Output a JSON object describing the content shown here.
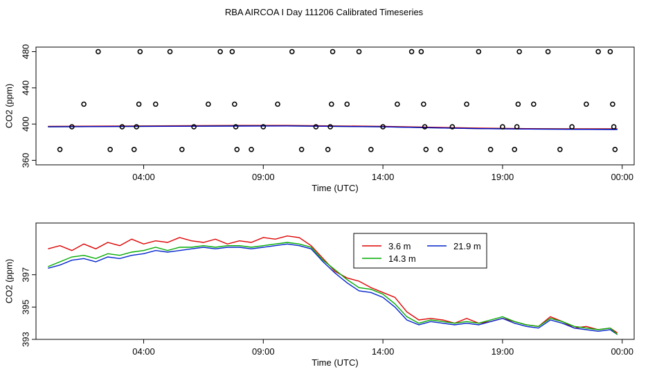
{
  "title": "RBA AIRCOA I  Day 111206  Calibrated Timeseries",
  "chart_data": [
    {
      "type": "scatter",
      "xlabel": "Time (UTC)",
      "ylabel": "CO2 (ppm)",
      "xlim": [
        -0.5,
        24.5
      ],
      "ylim": [
        355,
        485
      ],
      "x_ticks": [
        4,
        9,
        14,
        19,
        24
      ],
      "x_tick_labels": [
        "04:00",
        "09:00",
        "14:00",
        "19:00",
        "00:00"
      ],
      "y_ticks": [
        360,
        400,
        440,
        480
      ],
      "y_tick_labels": [
        "360",
        "400",
        "440",
        "480"
      ],
      "grid": false,
      "points": [
        {
          "x": 0.5,
          "y": 372
        },
        {
          "x": 1.0,
          "y": 397
        },
        {
          "x": 1.5,
          "y": 422
        },
        {
          "x": 2.1,
          "y": 480
        },
        {
          "x": 2.6,
          "y": 372
        },
        {
          "x": 3.1,
          "y": 397
        },
        {
          "x": 3.6,
          "y": 372
        },
        {
          "x": 3.7,
          "y": 397
        },
        {
          "x": 3.8,
          "y": 422
        },
        {
          "x": 3.85,
          "y": 480
        },
        {
          "x": 4.5,
          "y": 422
        },
        {
          "x": 5.1,
          "y": 480
        },
        {
          "x": 5.6,
          "y": 372
        },
        {
          "x": 6.1,
          "y": 397
        },
        {
          "x": 6.7,
          "y": 422
        },
        {
          "x": 7.2,
          "y": 480
        },
        {
          "x": 7.7,
          "y": 480
        },
        {
          "x": 7.8,
          "y": 422
        },
        {
          "x": 7.85,
          "y": 397
        },
        {
          "x": 7.9,
          "y": 372
        },
        {
          "x": 8.5,
          "y": 372
        },
        {
          "x": 9.0,
          "y": 397
        },
        {
          "x": 9.6,
          "y": 422
        },
        {
          "x": 10.2,
          "y": 480
        },
        {
          "x": 10.6,
          "y": 372
        },
        {
          "x": 11.2,
          "y": 397
        },
        {
          "x": 11.7,
          "y": 372
        },
        {
          "x": 11.8,
          "y": 397
        },
        {
          "x": 11.85,
          "y": 422
        },
        {
          "x": 11.9,
          "y": 480
        },
        {
          "x": 12.5,
          "y": 422
        },
        {
          "x": 13.0,
          "y": 480
        },
        {
          "x": 13.5,
          "y": 372
        },
        {
          "x": 14.0,
          "y": 397
        },
        {
          "x": 14.6,
          "y": 422
        },
        {
          "x": 15.2,
          "y": 480
        },
        {
          "x": 15.6,
          "y": 480
        },
        {
          "x": 15.7,
          "y": 422
        },
        {
          "x": 15.75,
          "y": 397
        },
        {
          "x": 15.8,
          "y": 372
        },
        {
          "x": 16.4,
          "y": 372
        },
        {
          "x": 16.9,
          "y": 397
        },
        {
          "x": 17.5,
          "y": 422
        },
        {
          "x": 18.0,
          "y": 480
        },
        {
          "x": 18.5,
          "y": 372
        },
        {
          "x": 19.0,
          "y": 397
        },
        {
          "x": 19.5,
          "y": 372
        },
        {
          "x": 19.6,
          "y": 397
        },
        {
          "x": 19.65,
          "y": 422
        },
        {
          "x": 19.7,
          "y": 480
        },
        {
          "x": 20.3,
          "y": 422
        },
        {
          "x": 20.9,
          "y": 480
        },
        {
          "x": 21.4,
          "y": 372
        },
        {
          "x": 21.9,
          "y": 397
        },
        {
          "x": 22.5,
          "y": 422
        },
        {
          "x": 23.0,
          "y": 480
        },
        {
          "x": 23.5,
          "y": 480
        },
        {
          "x": 23.6,
          "y": 422
        },
        {
          "x": 23.65,
          "y": 397
        },
        {
          "x": 23.7,
          "y": 372
        }
      ],
      "series": [
        {
          "color": "#cc0000",
          "x": [
            0,
            4,
            8,
            10,
            12,
            14,
            16,
            18,
            20,
            22,
            23.8
          ],
          "y": [
            397.5,
            398,
            398.5,
            398.5,
            398,
            397.5,
            396.5,
            395.5,
            395,
            394.8,
            394.8
          ]
        },
        {
          "color": "#00aa00",
          "x": [
            0,
            4,
            8,
            10,
            12,
            14,
            16,
            18,
            20,
            22,
            23.8
          ],
          "y": [
            397,
            397.5,
            398,
            398,
            397.5,
            397,
            396,
            395,
            394.5,
            394.3,
            394.2
          ]
        },
        {
          "color": "#0000cc",
          "x": [
            0,
            4,
            8,
            10,
            12,
            14,
            16,
            18,
            20,
            22,
            23.8
          ],
          "y": [
            397,
            397.5,
            397.8,
            398,
            397.5,
            397,
            396,
            395,
            394.5,
            394.2,
            394
          ]
        }
      ]
    },
    {
      "type": "line",
      "xlabel": "Time (UTC)",
      "ylabel": "CO2 (ppm)",
      "xlim": [
        -0.5,
        24.5
      ],
      "ylim": [
        393,
        400.2
      ],
      "x_ticks": [
        4,
        9,
        14,
        19,
        24
      ],
      "x_tick_labels": [
        "04:00",
        "09:00",
        "14:00",
        "19:00",
        "00:00"
      ],
      "y_ticks": [
        393,
        395,
        397
      ],
      "y_tick_labels": [
        "393",
        "395",
        "397"
      ],
      "grid": false,
      "legend": "top-right",
      "series": [
        {
          "name": "3.6 m",
          "color": "#dd0000",
          "x": [
            0,
            0.5,
            1,
            1.5,
            2,
            2.5,
            3,
            3.5,
            4,
            4.5,
            5,
            5.5,
            6,
            6.5,
            7,
            7.5,
            8,
            8.5,
            9,
            9.5,
            10,
            10.5,
            11,
            11.5,
            12,
            12.5,
            13,
            13.5,
            14,
            14.5,
            15,
            15.5,
            16,
            16.5,
            17,
            17.5,
            18,
            18.5,
            19,
            19.5,
            20,
            20.5,
            21,
            21.5,
            22,
            22.5,
            23,
            23.5,
            23.8
          ],
          "y": [
            398.6,
            398.8,
            398.5,
            398.9,
            398.6,
            399.0,
            398.8,
            399.2,
            398.9,
            399.1,
            399.0,
            399.3,
            399.1,
            399.0,
            399.2,
            398.9,
            399.1,
            399.0,
            399.3,
            399.2,
            399.4,
            399.3,
            398.8,
            398.0,
            397.2,
            396.8,
            396.6,
            396.2,
            395.9,
            395.6,
            394.7,
            394.2,
            394.3,
            394.2,
            394.0,
            394.3,
            394.0,
            394.1,
            394.3,
            394.1,
            393.9,
            393.8,
            394.4,
            394.1,
            393.7,
            393.8,
            393.6,
            393.7,
            393.4
          ]
        },
        {
          "name": "21.9 m",
          "color": "#0022cc",
          "x": [
            0,
            0.5,
            1,
            1.5,
            2,
            2.5,
            3,
            3.5,
            4,
            4.5,
            5,
            5.5,
            6,
            6.5,
            7,
            7.5,
            8,
            8.5,
            9,
            9.5,
            10,
            10.5,
            11,
            11.5,
            12,
            12.5,
            13,
            13.5,
            14,
            14.5,
            15,
            15.5,
            16,
            16.5,
            17,
            17.5,
            18,
            18.5,
            19,
            19.5,
            20,
            20.5,
            21,
            21.5,
            22,
            22.5,
            23,
            23.5,
            23.8
          ],
          "y": [
            397.4,
            397.6,
            397.9,
            398.0,
            397.8,
            398.1,
            398.0,
            398.2,
            398.3,
            398.5,
            398.4,
            398.5,
            398.6,
            398.7,
            398.6,
            398.7,
            398.7,
            398.6,
            398.7,
            398.8,
            398.9,
            398.8,
            398.6,
            397.8,
            397.1,
            396.5,
            396.0,
            395.9,
            395.6,
            395.0,
            394.2,
            393.9,
            394.1,
            394.0,
            393.9,
            394.0,
            393.9,
            394.1,
            394.3,
            394.0,
            393.8,
            393.7,
            394.2,
            394.0,
            393.7,
            393.6,
            393.5,
            393.6,
            393.3
          ]
        },
        {
          "name": "14.3 m",
          "color": "#00aa00",
          "x": [
            0,
            0.5,
            1,
            1.5,
            2,
            2.5,
            3,
            3.5,
            4,
            4.5,
            5,
            5.5,
            6,
            6.5,
            7,
            7.5,
            8,
            8.5,
            9,
            9.5,
            10,
            10.5,
            11,
            11.5,
            12,
            12.5,
            13,
            13.5,
            14,
            14.5,
            15,
            15.5,
            16,
            16.5,
            17,
            17.5,
            18,
            18.5,
            19,
            19.5,
            20,
            20.5,
            21,
            21.5,
            22,
            22.5,
            23,
            23.5,
            23.8
          ],
          "y": [
            397.5,
            397.8,
            398.1,
            398.2,
            398.0,
            398.3,
            398.2,
            398.4,
            398.5,
            398.7,
            398.5,
            398.7,
            398.7,
            398.8,
            398.7,
            398.8,
            398.8,
            398.7,
            398.8,
            398.9,
            399.0,
            398.9,
            398.7,
            397.9,
            397.3,
            396.7,
            396.2,
            396.1,
            395.8,
            395.2,
            394.4,
            394.0,
            394.2,
            394.1,
            394.0,
            394.1,
            394.0,
            394.2,
            394.4,
            394.1,
            393.9,
            393.8,
            394.3,
            394.1,
            393.8,
            393.7,
            393.6,
            393.7,
            393.3
          ]
        }
      ]
    }
  ]
}
